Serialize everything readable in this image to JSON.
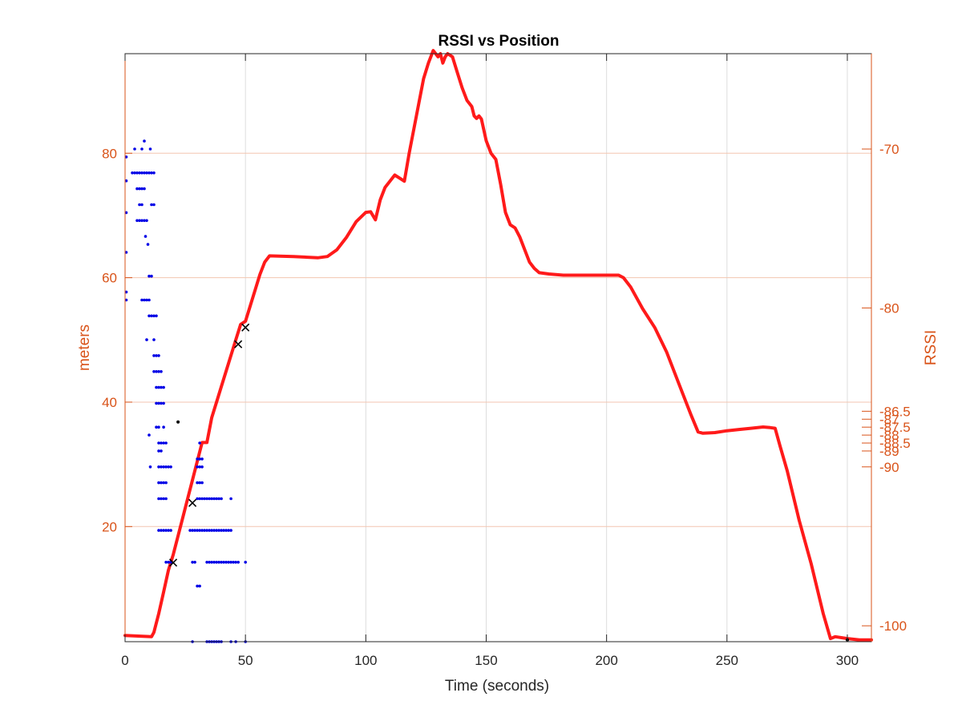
{
  "chart_data": {
    "type": "scatter",
    "title": "RSSI vs Position",
    "xlabel": "Time (seconds)",
    "ylabel_left": "meters",
    "ylabel_right": "RSSI",
    "xlim": [
      0,
      310
    ],
    "ylim_left": [
      1.5,
      96
    ],
    "ylim_right": [
      -101,
      -64
    ],
    "x_ticks": [
      0,
      50,
      100,
      150,
      200,
      250,
      300
    ],
    "y_left_ticks": [
      20,
      40,
      60,
      80
    ],
    "y_right_ticks": [
      {
        "value": -100,
        "label": "-100"
      },
      {
        "value": -90,
        "label": "-90"
      },
      {
        "value": -89,
        "label": "-89"
      },
      {
        "value": -88.5,
        "label": "-88.5"
      },
      {
        "value": -88,
        "label": "-88"
      },
      {
        "value": -87.5,
        "label": "-87.5"
      },
      {
        "value": -87,
        "label": "-87"
      },
      {
        "value": -86.5,
        "label": "-86.5"
      },
      {
        "value": -80,
        "label": "-80"
      },
      {
        "value": -70,
        "label": "-70"
      }
    ],
    "grid": true,
    "colors": {
      "position_line": "#ff1a1a",
      "rssi_points": "#0000e6",
      "markers": "#000000",
      "axis_accent": "#d95319",
      "right_grid": "#f3c6b0"
    },
    "series": [
      {
        "axis": "left",
        "style": "line",
        "x": [
          0,
          11,
          12,
          14,
          16,
          18,
          20,
          22,
          24,
          26,
          28,
          30,
          32,
          34,
          35,
          36,
          38,
          40,
          42,
          44,
          46,
          48,
          50,
          52,
          54,
          56,
          58,
          60,
          70,
          80,
          84,
          88,
          92,
          96,
          100,
          102,
          104,
          106,
          108,
          110,
          112,
          114,
          116,
          118,
          120,
          122,
          124,
          126,
          128,
          130,
          131,
          132,
          133,
          134,
          136,
          138,
          140,
          142,
          144,
          145,
          146,
          147,
          148,
          150,
          152,
          154,
          156,
          158,
          160,
          162,
          164,
          166,
          168,
          170,
          172,
          176,
          182,
          190,
          200,
          205,
          207,
          210,
          215,
          220,
          225,
          230,
          235,
          238,
          240,
          245,
          250,
          255,
          260,
          265,
          268,
          270,
          272,
          275,
          280,
          285,
          290,
          293,
          295,
          300,
          305,
          310
        ],
        "y": [
          2.5,
          2.3,
          3,
          6,
          9.5,
          13,
          15.5,
          18.5,
          21.5,
          24.5,
          27.5,
          30.5,
          33.5,
          33.5,
          35.5,
          37.5,
          40,
          42.5,
          45,
          47.5,
          50,
          52.5,
          53,
          55.5,
          58,
          60.5,
          62.5,
          63.5,
          63.4,
          63.2,
          63.4,
          64.5,
          66.5,
          69,
          70.5,
          70.6,
          69.3,
          72.5,
          74.5,
          75.5,
          76.5,
          76,
          75.5,
          80,
          84,
          88,
          92,
          94.5,
          96.5,
          95.5,
          96,
          94.5,
          95.5,
          96,
          95.5,
          93,
          90.5,
          88.5,
          87.5,
          86,
          85.6,
          86,
          85.5,
          82,
          80,
          79,
          75,
          70.5,
          68.5,
          68,
          66.5,
          64.5,
          62.5,
          61.5,
          60.8,
          60.6,
          60.4,
          60.4,
          60.4,
          60.4,
          60,
          58.5,
          55,
          52,
          48,
          43,
          38,
          35.2,
          35,
          35.1,
          35.4,
          35.6,
          35.8,
          36,
          35.9,
          35.8,
          33,
          29,
          21,
          14,
          6,
          2,
          2.3,
          2,
          1.8,
          1.8
        ]
      },
      {
        "axis": "right",
        "style": "points",
        "points": [
          [
            0.5,
            -70.5
          ],
          [
            0.5,
            -72
          ],
          [
            0.5,
            -74
          ],
          [
            0.5,
            -76.5
          ],
          [
            0.5,
            -79
          ],
          [
            0.5,
            -79.5
          ],
          [
            3,
            -71.5
          ],
          [
            4,
            -71.5
          ],
          [
            5,
            -71.5
          ],
          [
            6,
            -71.5
          ],
          [
            7,
            -71.5
          ],
          [
            8,
            -71.5
          ],
          [
            9,
            -71.5
          ],
          [
            10,
            -71.5
          ],
          [
            11,
            -71.5
          ],
          [
            12,
            -71.5
          ],
          [
            4,
            -70
          ],
          [
            7,
            -70
          ],
          [
            10.5,
            -70
          ],
          [
            8,
            -69.5
          ],
          [
            5,
            -72.5
          ],
          [
            6,
            -72.5
          ],
          [
            7,
            -72.5
          ],
          [
            8,
            -72.5
          ],
          [
            6,
            -73.5
          ],
          [
            7,
            -73.5
          ],
          [
            11,
            -73.5
          ],
          [
            12,
            -73.5
          ],
          [
            5,
            -74.5
          ],
          [
            6,
            -74.5
          ],
          [
            7,
            -74.5
          ],
          [
            8,
            -74.5
          ],
          [
            9,
            -74.5
          ],
          [
            8.5,
            -75.5
          ],
          [
            9.5,
            -76
          ],
          [
            10,
            -78
          ],
          [
            11,
            -78
          ],
          [
            7,
            -79.5
          ],
          [
            8,
            -79.5
          ],
          [
            9,
            -79.5
          ],
          [
            10,
            -79.5
          ],
          [
            10,
            -80.5
          ],
          [
            11,
            -80.5
          ],
          [
            12,
            -80.5
          ],
          [
            13,
            -80.5
          ],
          [
            9,
            -82
          ],
          [
            12,
            -82
          ],
          [
            12,
            -83
          ],
          [
            13,
            -83
          ],
          [
            14,
            -83
          ],
          [
            12,
            -84
          ],
          [
            13,
            -84
          ],
          [
            14,
            -84
          ],
          [
            15,
            -84
          ],
          [
            13,
            -85
          ],
          [
            14,
            -85
          ],
          [
            15,
            -85
          ],
          [
            16,
            -85
          ],
          [
            13,
            -86
          ],
          [
            14,
            -86
          ],
          [
            15,
            -86
          ],
          [
            16,
            -86
          ],
          [
            13,
            -87.5
          ],
          [
            14,
            -87.5
          ],
          [
            16,
            -87.5
          ],
          [
            10,
            -88
          ],
          [
            14,
            -88.5
          ],
          [
            15,
            -88.5
          ],
          [
            16,
            -88.5
          ],
          [
            17,
            -88.5
          ],
          [
            14,
            -89
          ],
          [
            15,
            -89
          ],
          [
            10.5,
            -90
          ],
          [
            14,
            -90
          ],
          [
            15,
            -90
          ],
          [
            16,
            -90
          ],
          [
            17,
            -90
          ],
          [
            18,
            -90
          ],
          [
            19,
            -90
          ],
          [
            31,
            -88.5
          ],
          [
            30,
            -89.5
          ],
          [
            31,
            -89.5
          ],
          [
            32,
            -89.5
          ],
          [
            30,
            -90
          ],
          [
            31,
            -90
          ],
          [
            32,
            -90
          ],
          [
            14,
            -91
          ],
          [
            15,
            -91
          ],
          [
            16,
            -91
          ],
          [
            17,
            -91
          ],
          [
            14,
            -92
          ],
          [
            15,
            -92
          ],
          [
            16,
            -92
          ],
          [
            17,
            -92
          ],
          [
            30,
            -91
          ],
          [
            31,
            -91
          ],
          [
            32,
            -91
          ],
          [
            30,
            -92
          ],
          [
            31,
            -92
          ],
          [
            32,
            -92
          ],
          [
            33,
            -92
          ],
          [
            34,
            -92
          ],
          [
            35,
            -92
          ],
          [
            36,
            -92
          ],
          [
            37,
            -92
          ],
          [
            38,
            -92
          ],
          [
            39,
            -92
          ],
          [
            40,
            -92
          ],
          [
            44,
            -92
          ],
          [
            14,
            -94
          ],
          [
            15,
            -94
          ],
          [
            16,
            -94
          ],
          [
            17,
            -94
          ],
          [
            18,
            -94
          ],
          [
            19,
            -94
          ],
          [
            27,
            -94
          ],
          [
            28,
            -94
          ],
          [
            29,
            -94
          ],
          [
            30,
            -94
          ],
          [
            31,
            -94
          ],
          [
            32,
            -94
          ],
          [
            33,
            -94
          ],
          [
            34,
            -94
          ],
          [
            35,
            -94
          ],
          [
            36,
            -94
          ],
          [
            37,
            -94
          ],
          [
            38,
            -94
          ],
          [
            39,
            -94
          ],
          [
            40,
            -94
          ],
          [
            41,
            -94
          ],
          [
            42,
            -94
          ],
          [
            43,
            -94
          ],
          [
            44,
            -94
          ],
          [
            17,
            -96
          ],
          [
            18,
            -96
          ],
          [
            19,
            -96
          ],
          [
            28,
            -96
          ],
          [
            29,
            -96
          ],
          [
            34,
            -96
          ],
          [
            35,
            -96
          ],
          [
            36,
            -96
          ],
          [
            37,
            -96
          ],
          [
            38,
            -96
          ],
          [
            39,
            -96
          ],
          [
            40,
            -96
          ],
          [
            41,
            -96
          ],
          [
            42,
            -96
          ],
          [
            43,
            -96
          ],
          [
            44,
            -96
          ],
          [
            45,
            -96
          ],
          [
            46,
            -96
          ],
          [
            47,
            -96
          ],
          [
            50,
            -96
          ],
          [
            30,
            -97.5
          ],
          [
            31,
            -97.5
          ],
          [
            28,
            -101
          ],
          [
            34,
            -101
          ],
          [
            35,
            -101
          ],
          [
            36,
            -101
          ],
          [
            37,
            -101
          ],
          [
            38,
            -101
          ],
          [
            39,
            -101
          ],
          [
            40,
            -101
          ],
          [
            44,
            -101
          ],
          [
            46,
            -101
          ],
          [
            50,
            -101
          ]
        ]
      },
      {
        "axis": "left",
        "style": "x-markers",
        "points": [
          [
            20,
            14.2
          ],
          [
            28,
            23.8
          ],
          [
            47,
            49.3
          ],
          [
            50,
            52
          ]
        ]
      },
      {
        "axis": "left",
        "style": "points-black",
        "points": [
          [
            22,
            36.8
          ],
          [
            300,
            1.8
          ]
        ]
      }
    ]
  }
}
